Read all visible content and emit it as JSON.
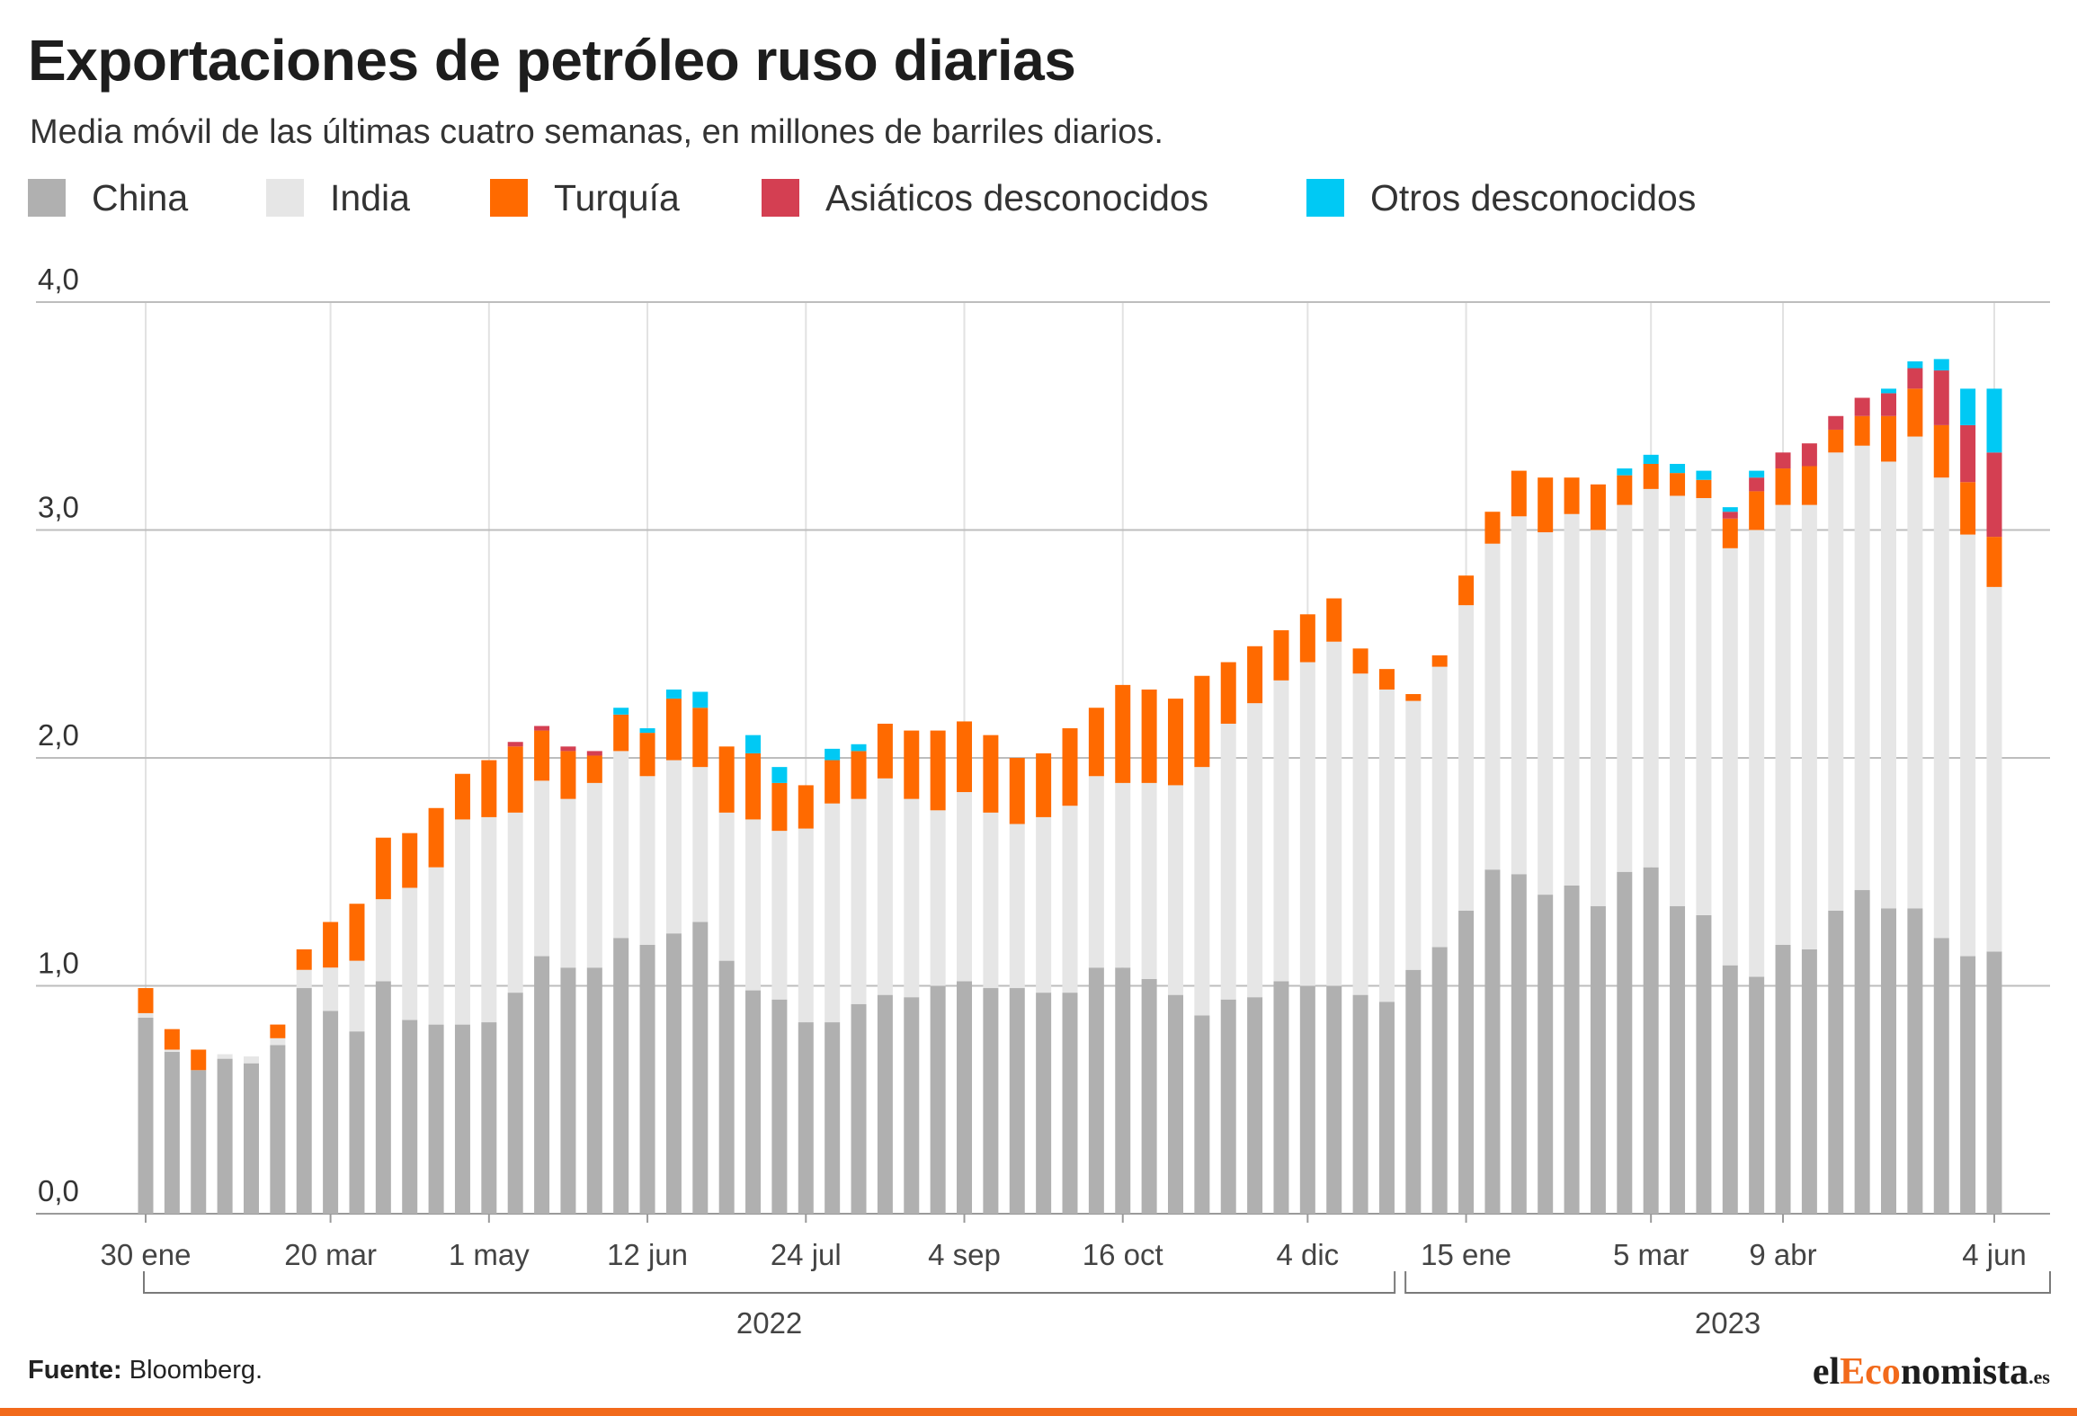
{
  "title": "Exportaciones de petróleo ruso diarias",
  "subtitle": "Media móvil de las últimas cuatro semanas, en millones de barriles diarios.",
  "legend": [
    {
      "label": "China",
      "color": "#b0b0b0"
    },
    {
      "label": "India",
      "color": "#e6e6e6"
    },
    {
      "label": "Turquía",
      "color": "#ff6a00"
    },
    {
      "label": "Asiáticos desconocidos",
      "color": "#d43f52"
    },
    {
      "label": "Otros desconocidos",
      "color": "#00c9f4"
    }
  ],
  "source": {
    "label": "Fuente:",
    "text": "Bloomberg."
  },
  "logo": {
    "part1": "el",
    "part2": "Eco",
    "part3": "nomista",
    "part4": ".es"
  },
  "chart_data": {
    "type": "bar",
    "stacked": true,
    "ylim": [
      0,
      4
    ],
    "y_ticks": [
      0,
      1,
      2,
      3,
      4
    ],
    "y_tick_labels": [
      "0,0",
      "1,0",
      "2,0",
      "3,0",
      "4,0"
    ],
    "grid": "horizontal",
    "legend_placement": "top-left",
    "x_tick_labels": [
      {
        "label": "30 ene",
        "index": 0
      },
      {
        "label": "20 mar",
        "index": 7
      },
      {
        "label": "1 may",
        "index": 13
      },
      {
        "label": "12 jun",
        "index": 19
      },
      {
        "label": "24 jul",
        "index": 25
      },
      {
        "label": "4 sep",
        "index": 31
      },
      {
        "label": "16 oct",
        "index": 37
      },
      {
        "label": "4 dic",
        "index": 44
      },
      {
        "label": "15 ene",
        "index": 50
      },
      {
        "label": "5 mar",
        "index": 57
      },
      {
        "label": "9 abr",
        "index": 62
      },
      {
        "label": "4 jun",
        "index": 70
      }
    ],
    "year_groups": [
      {
        "label": "2022",
        "from_index": 0,
        "to_index": 47
      },
      {
        "label": "2023",
        "from_index": 48,
        "to_index": 70
      }
    ],
    "series": [
      {
        "name": "China",
        "values": [
          0.86,
          0.71,
          0.63,
          0.68,
          0.66,
          0.74,
          0.99,
          0.89,
          0.8,
          1.02,
          0.85,
          0.83,
          0.83,
          0.84,
          0.97,
          1.13,
          1.08,
          1.08,
          1.21,
          1.18,
          1.23,
          1.28,
          1.11,
          0.98,
          0.94,
          0.84,
          0.84,
          0.92,
          0.96,
          0.95,
          1.0,
          1.02,
          0.99,
          0.99,
          0.97,
          0.97,
          1.08,
          1.08,
          1.03,
          0.96,
          0.87,
          0.94,
          0.95,
          1.02,
          1.0,
          1.0,
          0.96,
          0.93,
          1.07,
          1.17,
          1.33,
          1.51,
          1.49,
          1.4,
          1.44,
          1.35,
          1.5,
          1.52,
          1.35,
          1.31,
          1.09,
          1.04,
          1.18,
          1.16,
          1.33,
          1.42,
          1.34,
          1.34,
          1.21,
          1.13,
          1.15
        ]
      },
      {
        "name": "India",
        "values": [
          0.02,
          0.01,
          0.0,
          0.02,
          0.03,
          0.03,
          0.08,
          0.19,
          0.31,
          0.36,
          0.58,
          0.69,
          0.9,
          0.9,
          0.79,
          0.77,
          0.74,
          0.81,
          0.82,
          0.74,
          0.76,
          0.68,
          0.65,
          0.75,
          0.74,
          0.85,
          0.96,
          0.9,
          0.95,
          0.87,
          0.77,
          0.83,
          0.77,
          0.72,
          0.77,
          0.82,
          0.84,
          0.81,
          0.86,
          0.92,
          1.09,
          1.21,
          1.29,
          1.32,
          1.42,
          1.51,
          1.41,
          1.37,
          1.18,
          1.23,
          1.34,
          1.43,
          1.57,
          1.59,
          1.63,
          1.65,
          1.61,
          1.66,
          1.8,
          1.83,
          1.83,
          1.96,
          1.93,
          1.95,
          2.01,
          1.95,
          1.96,
          2.07,
          2.02,
          1.85,
          1.6
        ]
      },
      {
        "name": "Turquía",
        "values": [
          0.11,
          0.09,
          0.09,
          0.0,
          0.0,
          0.06,
          0.09,
          0.2,
          0.25,
          0.27,
          0.24,
          0.26,
          0.2,
          0.25,
          0.29,
          0.22,
          0.21,
          0.12,
          0.16,
          0.19,
          0.27,
          0.26,
          0.29,
          0.29,
          0.21,
          0.19,
          0.19,
          0.21,
          0.24,
          0.3,
          0.35,
          0.31,
          0.34,
          0.29,
          0.28,
          0.34,
          0.3,
          0.43,
          0.41,
          0.38,
          0.4,
          0.27,
          0.25,
          0.22,
          0.21,
          0.19,
          0.11,
          0.09,
          0.03,
          0.05,
          0.13,
          0.14,
          0.2,
          0.24,
          0.16,
          0.2,
          0.13,
          0.11,
          0.1,
          0.08,
          0.13,
          0.17,
          0.16,
          0.17,
          0.1,
          0.13,
          0.2,
          0.21,
          0.23,
          0.23,
          0.22
        ]
      },
      {
        "name": "Asiáticos desconocidos",
        "values": [
          0,
          0,
          0,
          0,
          0,
          0,
          0,
          0,
          0,
          0,
          0,
          0,
          0,
          0,
          0.02,
          0.02,
          0.02,
          0.02,
          0,
          0,
          0,
          0,
          0,
          0,
          0,
          0,
          0,
          0,
          0,
          0,
          0,
          0,
          0,
          0,
          0,
          0,
          0,
          0,
          0,
          0,
          0,
          0,
          0,
          0,
          0,
          0,
          0,
          0,
          0,
          0,
          0,
          0,
          0,
          0,
          0,
          0,
          0,
          0,
          0,
          0,
          0.03,
          0.06,
          0.07,
          0.1,
          0.06,
          0.08,
          0.1,
          0.09,
          0.24,
          0.25,
          0.37
        ]
      },
      {
        "name": "Otros desconocidos",
        "values": [
          0,
          0,
          0,
          0,
          0,
          0,
          0,
          0,
          0,
          0,
          0,
          0,
          0,
          0,
          0,
          0,
          0,
          0,
          0.03,
          0.02,
          0.04,
          0.07,
          0,
          0.08,
          0.07,
          0,
          0.05,
          0.03,
          0,
          0,
          0,
          0,
          0,
          0,
          0,
          0,
          0,
          0,
          0,
          0,
          0,
          0,
          0,
          0,
          0,
          0,
          0,
          0,
          0,
          0,
          0,
          0,
          0,
          0,
          0,
          0,
          0.03,
          0.04,
          0.04,
          0.04,
          0.02,
          0.03,
          0,
          0,
          0,
          0,
          0.02,
          0.03,
          0.05,
          0.16,
          0.28
        ]
      }
    ]
  }
}
